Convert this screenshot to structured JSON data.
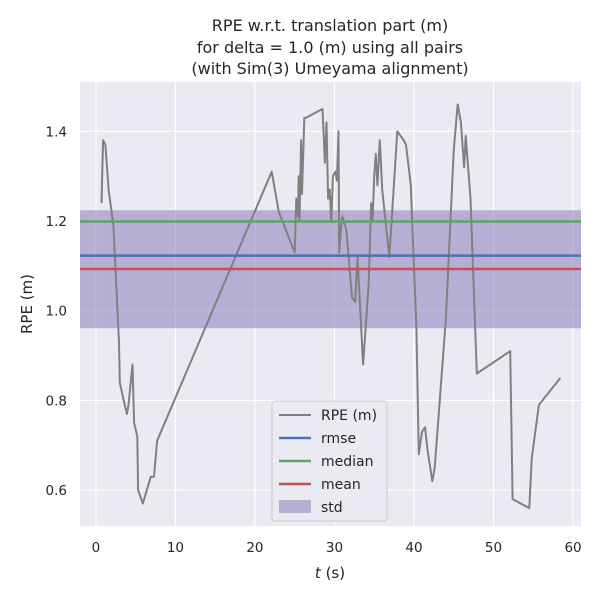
{
  "chart_data": {
    "type": "line",
    "title_lines": [
      "RPE w.r.t. translation part (m)",
      "for delta = 1.0 (m) using all pairs",
      "(with Sim(3) Umeyama alignment)"
    ],
    "xlabel_var": "t",
    "xlabel_unit": " (s)",
    "ylabel": "RPE (m)",
    "xlim": [
      -2,
      61
    ],
    "ylim": [
      0.52,
      1.51
    ],
    "xticks": [
      0,
      10,
      20,
      30,
      40,
      50,
      60
    ],
    "yticks": [
      0.6,
      0.8,
      1.0,
      1.2,
      1.4
    ],
    "ytick_labels": [
      "0.6",
      "0.8",
      "1.0",
      "1.2",
      "1.4"
    ],
    "grid": true,
    "legend_position": "lower-center",
    "series": [
      {
        "name": "RPE (m)",
        "color": "#808080",
        "x": [
          0.7,
          0.9,
          1.2,
          1.6,
          2.2,
          2.9,
          3.0,
          3.5,
          3.9,
          4.1,
          4.6,
          4.8,
          5.2,
          5.3,
          5.9,
          6.9,
          7.3,
          7.7,
          22.1,
          23.0,
          25.0,
          25.2,
          25.4,
          25.5,
          25.6,
          25.8,
          25.9,
          26.0,
          26.2,
          26.4,
          28.5,
          28.8,
          29.0,
          29.2,
          29.4,
          29.6,
          29.8,
          30.1,
          30.3,
          30.5,
          30.6,
          30.8,
          31.0,
          31.5,
          32.2,
          32.6,
          32.9,
          33.6,
          34.3,
          34.6,
          34.8,
          35.0,
          35.2,
          35.4,
          35.7,
          36.0,
          36.9,
          37.9,
          38.7,
          39.0,
          39.6,
          40.3,
          40.6,
          41.0,
          41.4,
          41.7,
          42.3,
          42.6,
          44.0,
          45.0,
          45.5,
          45.9,
          46.3,
          46.5,
          47.1,
          47.9,
          52.1,
          52.4,
          54.5,
          54.8,
          55.7,
          58.4
        ],
        "y": [
          1.24,
          1.38,
          1.37,
          1.27,
          1.19,
          0.93,
          0.84,
          0.8,
          0.77,
          0.79,
          0.88,
          0.75,
          0.72,
          0.6,
          0.57,
          0.63,
          0.63,
          0.71,
          1.31,
          1.22,
          1.13,
          1.25,
          1.21,
          1.3,
          1.2,
          1.38,
          1.26,
          1.31,
          1.43,
          1.43,
          1.45,
          1.33,
          1.42,
          1.25,
          1.27,
          1.2,
          1.3,
          1.31,
          1.29,
          1.4,
          1.13,
          1.18,
          1.21,
          1.18,
          1.03,
          1.02,
          1.12,
          0.88,
          1.06,
          1.24,
          1.2,
          1.3,
          1.35,
          1.28,
          1.38,
          1.27,
          1.12,
          1.4,
          1.38,
          1.37,
          1.28,
          0.96,
          0.68,
          0.73,
          0.74,
          0.69,
          0.62,
          0.65,
          0.98,
          1.36,
          1.46,
          1.42,
          1.32,
          1.39,
          1.25,
          0.86,
          0.91,
          0.58,
          0.56,
          0.67,
          0.79,
          0.85
        ]
      },
      {
        "name": "rmse",
        "color": "#4c72b0",
        "value": 1.123
      },
      {
        "name": "median",
        "color": "#55a868",
        "value": 1.199
      },
      {
        "name": "mean",
        "color": "#c44e52",
        "value": 1.093
      },
      {
        "name": "std",
        "color": "#8172b3",
        "band": [
          0.961,
          1.224
        ]
      }
    ]
  }
}
